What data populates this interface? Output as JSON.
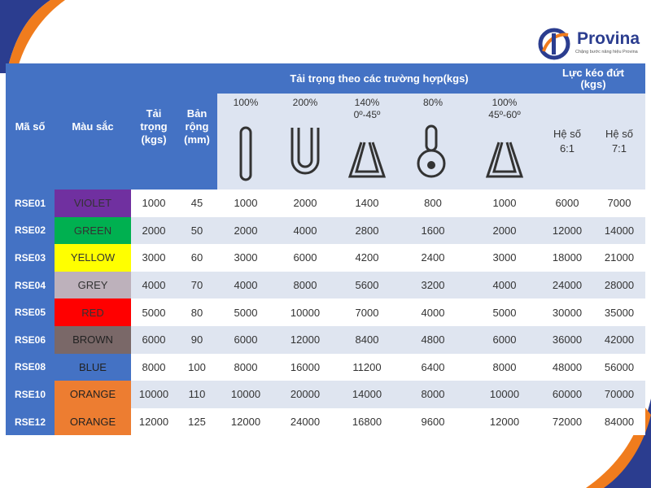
{
  "brand": {
    "name": "Provina",
    "tagline": "Chặng bước nâng hiệu Provina",
    "colors": {
      "primary": "#2b3d8f",
      "accent": "#f07c1d"
    }
  },
  "table": {
    "headers": {
      "code": "Mã số",
      "color": "Màu sắc",
      "load": "Tải trọng (kgs)",
      "width": "Bản rộng (mm)",
      "load_cases": "Tải trọng theo các trường hợp(kgs)",
      "breaking": "Lực kéo đứt (kgs)",
      "case_labels": [
        "100%",
        "200%",
        "140%\n0º-45º",
        "80%",
        "100%\n45º-60º"
      ],
      "factor_labels": [
        "Hệ số\n6:1",
        "Hệ số\n7:1"
      ]
    },
    "rows": [
      {
        "code": "RSE01",
        "color": "VIOLET",
        "swatch": "#7030a0",
        "text_color": "#333333",
        "load": "1000",
        "width": "45",
        "c1": "1000",
        "c2": "2000",
        "c3": "1400",
        "c4": "800",
        "c5": "1000",
        "f6": "6000",
        "f7": "7000"
      },
      {
        "code": "RSE02",
        "color": "GREEN",
        "swatch": "#00b050",
        "text_color": "#333333",
        "load": "2000",
        "width": "50",
        "c1": "2000",
        "c2": "4000",
        "c3": "2800",
        "c4": "1600",
        "c5": "2000",
        "f6": "12000",
        "f7": "14000"
      },
      {
        "code": "RSE03",
        "color": "YELLOW",
        "swatch": "#ffff00",
        "text_color": "#333333",
        "load": "3000",
        "width": "60",
        "c1": "3000",
        "c2": "6000",
        "c3": "4200",
        "c4": "2400",
        "c5": "3000",
        "f6": "18000",
        "f7": "21000"
      },
      {
        "code": "RSE04",
        "color": "GREY",
        "swatch": "#bdb1bb",
        "text_color": "#333333",
        "load": "4000",
        "width": "70",
        "c1": "4000",
        "c2": "8000",
        "c3": "5600",
        "c4": "3200",
        "c5": "4000",
        "f6": "24000",
        "f7": "28000"
      },
      {
        "code": "RSE05",
        "color": "RED",
        "swatch": "#ff0000",
        "text_color": "#333333",
        "load": "5000",
        "width": "80",
        "c1": "5000",
        "c2": "10000",
        "c3": "7000",
        "c4": "4000",
        "c5": "5000",
        "f6": "30000",
        "f7": "35000"
      },
      {
        "code": "RSE06",
        "color": "BROWN",
        "swatch": "#7a6868",
        "text_color": "#222222",
        "load": "6000",
        "width": "90",
        "c1": "6000",
        "c2": "12000",
        "c3": "8400",
        "c4": "4800",
        "c5": "6000",
        "f6": "36000",
        "f7": "42000"
      },
      {
        "code": "RSE08",
        "color": "BLUE",
        "swatch": "#4472c4",
        "text_color": "#222222",
        "load": "8000",
        "width": "100",
        "c1": "8000",
        "c2": "16000",
        "c3": "11200",
        "c4": "6400",
        "c5": "8000",
        "f6": "48000",
        "f7": "56000"
      },
      {
        "code": "RSE10",
        "color": "ORANGE",
        "swatch": "#ed7d31",
        "text_color": "#222222",
        "load": "10000",
        "width": "110",
        "c1": "10000",
        "c2": "20000",
        "c3": "14000",
        "c4": "8000",
        "c5": "10000",
        "f6": "60000",
        "f7": "70000"
      },
      {
        "code": "RSE12",
        "color": "ORANGE",
        "swatch": "#ed7d31",
        "text_color": "#222222",
        "load": "12000",
        "width": "125",
        "c1": "12000",
        "c2": "24000",
        "c3": "16800",
        "c4": "9600",
        "c5": "12000",
        "f6": "72000",
        "f7": "84000"
      }
    ]
  }
}
